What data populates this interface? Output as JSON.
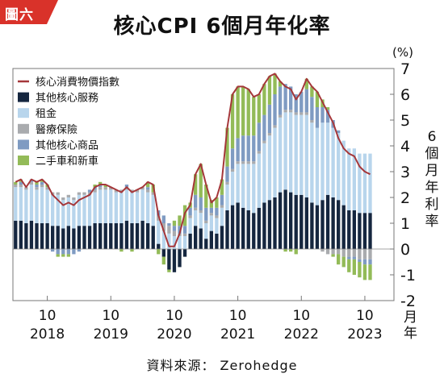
{
  "badge": "圖六",
  "source": "資料來源： Zerohedge",
  "colors": {
    "headline": "#a5373a",
    "services": "#15263f",
    "rent": "#b8d5ec",
    "medical": "#a9abae",
    "goods": "#7f9bc2",
    "cars": "#93bb58",
    "badge": "#d9322a",
    "frame": "#777777"
  },
  "chart_data": {
    "type": "bar",
    "title": "核心CPI 6個月年化率",
    "unit": "(%)",
    "ylabel": "6個月年利率",
    "xunit": "月年",
    "ylim": [
      -2,
      7
    ],
    "yticks": [
      -2,
      -1,
      0,
      1,
      2,
      3,
      4,
      5,
      6,
      7
    ],
    "stacked": true,
    "x_start": "2017-04",
    "x_end": "2023-03",
    "x_tick_month": "10",
    "x_ticks": [
      {
        "month": "10",
        "year": "2018",
        "date": "2017-10"
      },
      {
        "month": "10",
        "year": "2019",
        "date": "2018-10"
      },
      {
        "month": "10",
        "year": "2020",
        "date": "2019-10"
      },
      {
        "month": "10",
        "year": "2021",
        "date": "2020-10"
      },
      {
        "month": "10",
        "year": "2022",
        "date": "2021-10"
      },
      {
        "month": "10",
        "year": "2023",
        "date": "2022-10"
      }
    ],
    "legend": [
      "核心消費物價指數",
      "其他核心服務",
      "租金",
      "醫療保險",
      "其他核心商品",
      "二手車和新車"
    ],
    "series": [
      {
        "name": "核心消費物價指數",
        "type": "line",
        "color_key": "headline",
        "values": [
          2.6,
          2.7,
          2.4,
          2.7,
          2.6,
          2.7,
          2.5,
          2.1,
          1.9,
          1.7,
          1.8,
          1.7,
          1.9,
          2.0,
          2.1,
          2.4,
          2.5,
          2.5,
          2.4,
          2.3,
          2.2,
          2.4,
          2.2,
          2.3,
          2.4,
          2.6,
          2.5,
          1.3,
          0.7,
          0.1,
          0.1,
          0.6,
          1.4,
          1.7,
          2.9,
          3.3,
          2.5,
          1.8,
          2.0,
          2.7,
          4.7,
          6.0,
          6.3,
          6.3,
          6.2,
          5.9,
          6.0,
          6.4,
          6.7,
          6.8,
          6.5,
          6.3,
          6.2,
          5.8,
          6.1,
          6.6,
          6.3,
          6.1,
          5.7,
          5.3,
          4.9,
          4.3,
          3.9,
          3.7,
          3.6,
          3.2,
          3.0,
          2.9
        ]
      },
      {
        "name": "其他核心服務",
        "color_key": "services",
        "values": [
          1.1,
          1.1,
          1.0,
          1.1,
          1.0,
          1.0,
          1.0,
          0.9,
          0.9,
          0.8,
          0.9,
          0.8,
          0.9,
          0.9,
          0.9,
          1.0,
          1.0,
          1.0,
          1.0,
          1.0,
          1.0,
          1.1,
          1.0,
          1.0,
          1.1,
          1.0,
          0.9,
          0.2,
          -0.3,
          -0.8,
          -0.9,
          -0.7,
          -0.3,
          0.6,
          0.9,
          0.8,
          0.4,
          0.7,
          0.6,
          0.9,
          1.5,
          1.7,
          1.8,
          1.6,
          1.5,
          1.4,
          1.6,
          1.8,
          1.9,
          2.0,
          2.2,
          2.3,
          2.2,
          2.1,
          2.1,
          2.0,
          1.8,
          1.7,
          1.9,
          2.1,
          2.0,
          1.9,
          1.7,
          1.5,
          1.5,
          1.4,
          1.4,
          1.4
        ]
      },
      {
        "name": "租金",
        "color_key": "rent",
        "values": [
          1.3,
          1.3,
          1.3,
          1.4,
          1.3,
          1.4,
          1.3,
          1.2,
          1.2,
          1.1,
          1.1,
          1.1,
          1.2,
          1.2,
          1.2,
          1.2,
          1.3,
          1.3,
          1.3,
          1.2,
          1.2,
          1.2,
          1.2,
          1.2,
          1.2,
          1.2,
          1.2,
          0.9,
          0.7,
          0.6,
          0.5,
          0.5,
          0.5,
          0.6,
          0.6,
          0.6,
          0.6,
          0.6,
          0.6,
          0.7,
          1.0,
          1.3,
          1.5,
          1.7,
          1.8,
          1.9,
          2.1,
          2.3,
          2.5,
          2.7,
          2.9,
          3.0,
          3.1,
          3.1,
          3.1,
          3.2,
          3.1,
          3.0,
          3.0,
          2.8,
          2.7,
          2.6,
          2.5,
          2.4,
          2.4,
          2.3,
          2.3,
          2.3
        ]
      },
      {
        "name": "醫療保險",
        "color_key": "medical",
        "values": [
          0.1,
          0.1,
          0.1,
          0.1,
          0.1,
          0.1,
          0.1,
          0.1,
          0.1,
          0.1,
          0.1,
          0.1,
          0.1,
          0.1,
          0.1,
          0.1,
          0.1,
          0.1,
          0.1,
          0.1,
          0.1,
          0.1,
          0.1,
          0.1,
          0.1,
          0.1,
          0.1,
          0.2,
          0.3,
          0.3,
          0.2,
          0.1,
          0.1,
          0.1,
          0.1,
          0.1,
          0.1,
          0.1,
          0.1,
          0.1,
          0.1,
          0.1,
          0.1,
          0.1,
          0.1,
          0.1,
          0.1,
          0.1,
          0.1,
          0.1,
          0.1,
          0.1,
          0.1,
          0.1,
          0.1,
          0.1,
          0.1,
          0.0,
          -0.1,
          -0.2,
          -0.2,
          -0.2,
          -0.3,
          -0.3,
          -0.3,
          -0.4,
          -0.4,
          -0.4
        ]
      },
      {
        "name": "其他核心商品",
        "color_key": "goods",
        "values": [
          0.0,
          0.1,
          0.0,
          0.1,
          0.1,
          0.1,
          0.0,
          -0.1,
          -0.2,
          -0.2,
          -0.2,
          -0.2,
          -0.1,
          0.0,
          0.1,
          0.1,
          0.1,
          0.0,
          0.0,
          0.0,
          0.0,
          0.1,
          0.0,
          0.0,
          0.0,
          0.1,
          0.0,
          0.2,
          0.3,
          0.1,
          0.2,
          0.3,
          0.3,
          0.3,
          0.5,
          0.5,
          0.5,
          0.2,
          0.3,
          0.4,
          0.6,
          0.8,
          0.9,
          1.0,
          1.0,
          1.0,
          1.1,
          1.0,
          1.1,
          1.2,
          1.1,
          1.0,
          0.9,
          0.7,
          0.8,
          0.9,
          0.9,
          0.8,
          0.6,
          0.5,
          0.3,
          0.1,
          0.0,
          -0.1,
          -0.1,
          -0.1,
          -0.2,
          -0.2
        ]
      },
      {
        "name": "二手車和新車",
        "color_key": "cars",
        "values": [
          0.1,
          0.1,
          0.0,
          0.0,
          0.1,
          0.1,
          0.1,
          0.0,
          -0.1,
          -0.1,
          -0.1,
          0.0,
          0.0,
          0.0,
          0.0,
          0.1,
          0.1,
          0.1,
          0.0,
          0.0,
          -0.1,
          0.0,
          -0.1,
          0.0,
          0.0,
          0.2,
          0.3,
          -0.2,
          -0.3,
          -0.1,
          0.2,
          0.4,
          0.8,
          0.2,
          0.8,
          1.3,
          0.9,
          0.3,
          0.4,
          0.6,
          1.5,
          2.1,
          2.0,
          1.9,
          1.8,
          1.5,
          1.1,
          1.2,
          1.1,
          0.8,
          0.2,
          -0.1,
          -0.1,
          -0.2,
          0.0,
          0.4,
          0.4,
          0.6,
          0.3,
          0.1,
          -0.1,
          -0.4,
          -0.4,
          -0.5,
          -0.6,
          -0.6,
          -0.6,
          -0.6
        ]
      }
    ]
  }
}
